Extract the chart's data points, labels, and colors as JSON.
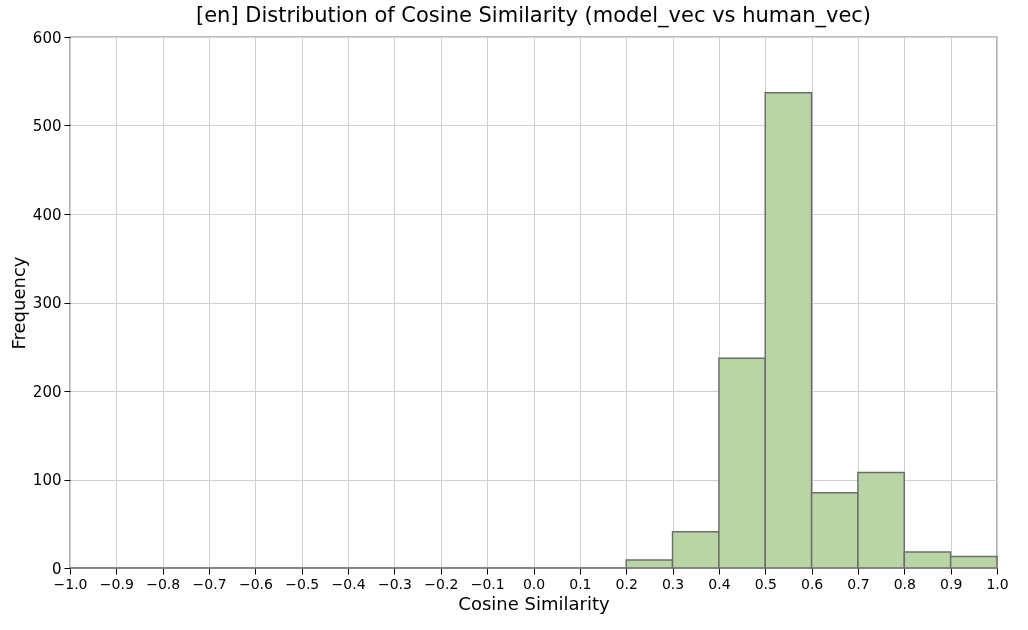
{
  "chart_data": {
    "type": "histogram",
    "title": "[en] Distribution of Cosine Similarity (model_vec vs human_vec)",
    "xlabel": "Cosine Similarity",
    "ylabel": "Frequency",
    "bins": [
      -1.0,
      -0.9,
      -0.8,
      -0.7,
      -0.6,
      -0.5,
      -0.4,
      -0.3,
      -0.2,
      -0.1,
      0.0,
      0.1,
      0.2,
      0.3,
      0.4,
      0.5,
      0.6,
      0.7,
      0.8,
      0.9,
      1.0
    ],
    "values": [
      0,
      0,
      0,
      0,
      0,
      0,
      0,
      0,
      0,
      0,
      0,
      0,
      9,
      41,
      237,
      537,
      85,
      108,
      18,
      13
    ],
    "color": "#b9d5a6",
    "xlim": [
      -1.0,
      1.0
    ],
    "xticks": [
      {
        "value": -1.0,
        "label": "−1.0"
      },
      {
        "value": -0.9,
        "label": "−0.9"
      },
      {
        "value": -0.8,
        "label": "−0.8"
      },
      {
        "value": -0.7,
        "label": "−0.7"
      },
      {
        "value": -0.6,
        "label": "−0.6"
      },
      {
        "value": -0.5,
        "label": "−0.5"
      },
      {
        "value": -0.4,
        "label": "−0.4"
      },
      {
        "value": -0.3,
        "label": "−0.3"
      },
      {
        "value": -0.2,
        "label": "−0.2"
      },
      {
        "value": -0.1,
        "label": "−0.1"
      },
      {
        "value": 0,
        "label": "0.0"
      },
      {
        "value": 0.1,
        "label": "0.1"
      },
      {
        "value": 0.2,
        "label": "0.2"
      },
      {
        "value": 0.3,
        "label": "0.3"
      },
      {
        "value": 0.4,
        "label": "0.4"
      },
      {
        "value": 0.5,
        "label": "0.5"
      },
      {
        "value": 0.6,
        "label": "0.6"
      },
      {
        "value": 0.7,
        "label": "0.7"
      },
      {
        "value": 0.8,
        "label": "0.8"
      },
      {
        "value": 0.9,
        "label": "0.9"
      },
      {
        "value": 1.0,
        "label": "1.0"
      }
    ],
    "ylim": [
      0,
      600
    ],
    "yticks": [
      0,
      100,
      200,
      300,
      400,
      500,
      600
    ],
    "grid": true
  }
}
